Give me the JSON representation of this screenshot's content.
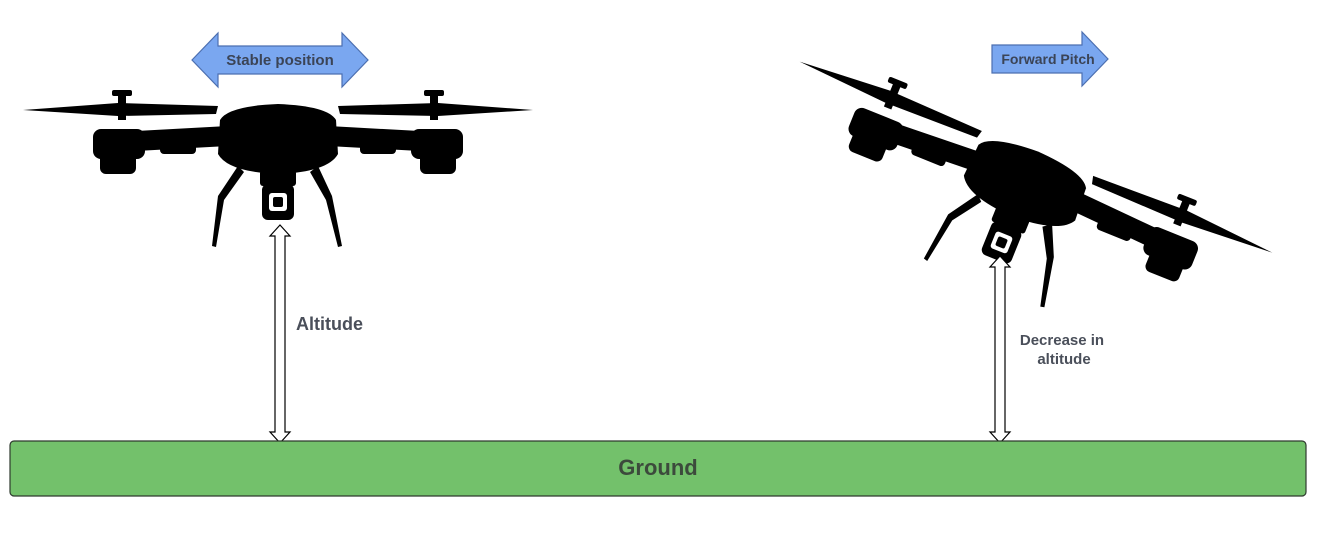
{
  "diagram": {
    "left_drone": {
      "arrow_label": "Stable position",
      "measure_label": "Altitude"
    },
    "right_drone": {
      "arrow_label": "Forward Pitch",
      "measure_label_line1": "Decrease in",
      "measure_label_line2": "altitude"
    },
    "ground": {
      "label": "Ground"
    }
  },
  "colors": {
    "arrow_fill": "#7aa7f0",
    "ground_fill": "#73c16b",
    "drone": "#000000"
  }
}
